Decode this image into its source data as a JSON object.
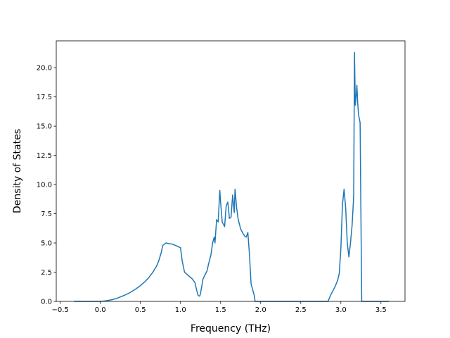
{
  "chart_data": {
    "type": "line",
    "title": "",
    "xlabel": "Frequency (THz)",
    "ylabel": "Density of States",
    "xlim": [
      -0.55,
      3.8
    ],
    "ylim": [
      0,
      22.3
    ],
    "xticks": [
      -0.5,
      0.0,
      0.5,
      1.0,
      1.5,
      2.0,
      2.5,
      3.0,
      3.5
    ],
    "xtick_labels": [
      "−0.5",
      "0.0",
      "0.5",
      "1.0",
      "1.5",
      "2.0",
      "2.5",
      "3.0",
      "3.5"
    ],
    "yticks": [
      0.0,
      2.5,
      5.0,
      7.5,
      10.0,
      12.5,
      15.0,
      17.5,
      20.0
    ],
    "ytick_labels": [
      "0.0",
      "2.5",
      "5.0",
      "7.5",
      "10.0",
      "12.5",
      "15.0",
      "17.5",
      "20.0"
    ],
    "grid": false,
    "line_color": "#1f77b4",
    "series": [
      {
        "x": [
          -0.33,
          0.0,
          0.05,
          0.1,
          0.15,
          0.2,
          0.25,
          0.3,
          0.35,
          0.4,
          0.45,
          0.5,
          0.55,
          0.6,
          0.65,
          0.7,
          0.73,
          0.76,
          0.78,
          0.8,
          0.82,
          0.85,
          0.9,
          0.95,
          0.98,
          1.0,
          1.02,
          1.05,
          1.1,
          1.15,
          1.18,
          1.2,
          1.22,
          1.24,
          1.25,
          1.28,
          1.3,
          1.33,
          1.35,
          1.38,
          1.4,
          1.42,
          1.43,
          1.45,
          1.47,
          1.49,
          1.5,
          1.52,
          1.55,
          1.57,
          1.59,
          1.61,
          1.63,
          1.65,
          1.67,
          1.68,
          1.7,
          1.72,
          1.75,
          1.78,
          1.8,
          1.82,
          1.84,
          1.86,
          1.88,
          1.9,
          1.92,
          1.93,
          2.5,
          2.84,
          2.87,
          2.9,
          2.93,
          2.96,
          2.98,
          3.0,
          3.02,
          3.04,
          3.06,
          3.08,
          3.1,
          3.12,
          3.14,
          3.16,
          3.17,
          3.18,
          3.19,
          3.2,
          3.21,
          3.22,
          3.24,
          3.26,
          3.27,
          3.3,
          3.6
        ],
        "y": [
          0.0,
          0.0,
          0.03,
          0.08,
          0.15,
          0.25,
          0.38,
          0.52,
          0.68,
          0.88,
          1.1,
          1.35,
          1.65,
          2.0,
          2.45,
          3.0,
          3.5,
          4.2,
          4.8,
          4.9,
          5.0,
          4.95,
          4.9,
          4.75,
          4.65,
          4.6,
          3.5,
          2.5,
          2.2,
          1.9,
          1.6,
          1.0,
          0.5,
          0.45,
          0.7,
          1.9,
          2.2,
          2.6,
          3.2,
          4.0,
          5.0,
          5.5,
          5.0,
          7.0,
          6.8,
          9.5,
          8.5,
          6.8,
          6.4,
          8.2,
          8.5,
          7.1,
          7.2,
          9.1,
          7.6,
          9.6,
          8.0,
          7.0,
          6.2,
          5.8,
          5.6,
          5.5,
          5.9,
          4.0,
          1.5,
          1.0,
          0.5,
          0.0,
          0.0,
          0.0,
          0.5,
          0.9,
          1.3,
          1.8,
          2.4,
          4.5,
          8.3,
          9.6,
          8.0,
          5.0,
          3.8,
          5.0,
          6.5,
          9.0,
          21.3,
          16.8,
          17.5,
          18.5,
          17.0,
          16.0,
          15.3,
          0.0,
          0.0,
          0.0,
          0.0
        ]
      }
    ]
  }
}
